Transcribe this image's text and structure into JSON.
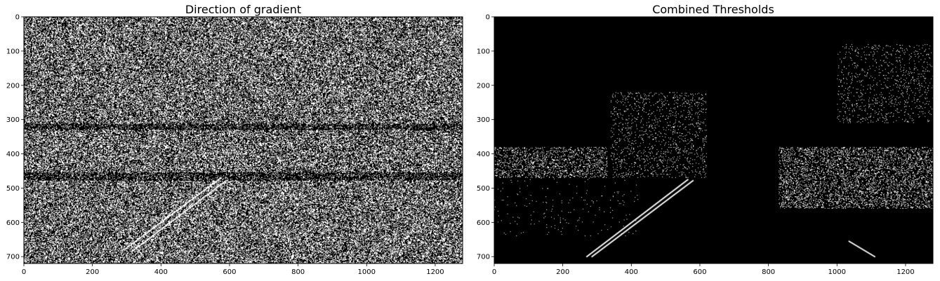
{
  "chart_data": [
    {
      "type": "heatmap",
      "title": "Direction of gradient",
      "xlabel": "",
      "ylabel": "",
      "xlim": [
        0,
        1280
      ],
      "ylim": [
        720,
        0
      ],
      "xticks": [
        0,
        200,
        400,
        600,
        800,
        1000,
        1200
      ],
      "yticks": [
        0,
        100,
        200,
        300,
        400,
        500,
        600,
        700
      ],
      "colormap": "gray",
      "background_color": "#000000",
      "pixel_color": "#ffffff",
      "content": "dense binary noise across the whole image",
      "fill_density": 0.42,
      "lane_lines": [
        {
          "x1": 295,
          "y1": 678,
          "x2": 575,
          "y2": 470
        },
        {
          "x1": 315,
          "y1": 685,
          "x2": 590,
          "y2": 478
        }
      ]
    },
    {
      "type": "heatmap",
      "title": "Combined Thresholds",
      "xlabel": "",
      "ylabel": "",
      "xlim": [
        0,
        1280
      ],
      "ylim": [
        720,
        0
      ],
      "xticks": [
        0,
        200,
        400,
        600,
        800,
        1000,
        1200
      ],
      "yticks": [
        0,
        100,
        200,
        300,
        400,
        500,
        600,
        700
      ],
      "colormap": "gray",
      "background_color": "#000000",
      "pixel_color": "#ffffff",
      "content": "mostly black with sparse edges, trees and two lane lines",
      "lane_lines": [
        {
          "x1": 270,
          "y1": 700,
          "x2": 565,
          "y2": 475
        },
        {
          "x1": 285,
          "y1": 700,
          "x2": 580,
          "y2": 478
        },
        {
          "x1": 1035,
          "y1": 655,
          "x2": 1110,
          "y2": 700
        }
      ],
      "sparse_regions": [
        {
          "x": [
            0,
            330
          ],
          "y": [
            380,
            470
          ],
          "density": 0.18
        },
        {
          "x": [
            340,
            620
          ],
          "y": [
            220,
            470
          ],
          "density": 0.07
        },
        {
          "x": [
            1000,
            1280
          ],
          "y": [
            80,
            310
          ],
          "density": 0.05
        },
        {
          "x": [
            830,
            1280
          ],
          "y": [
            380,
            560
          ],
          "density": 0.2
        },
        {
          "x": [
            0,
            420
          ],
          "y": [
            450,
            640
          ],
          "density": 0.01
        }
      ]
    }
  ]
}
